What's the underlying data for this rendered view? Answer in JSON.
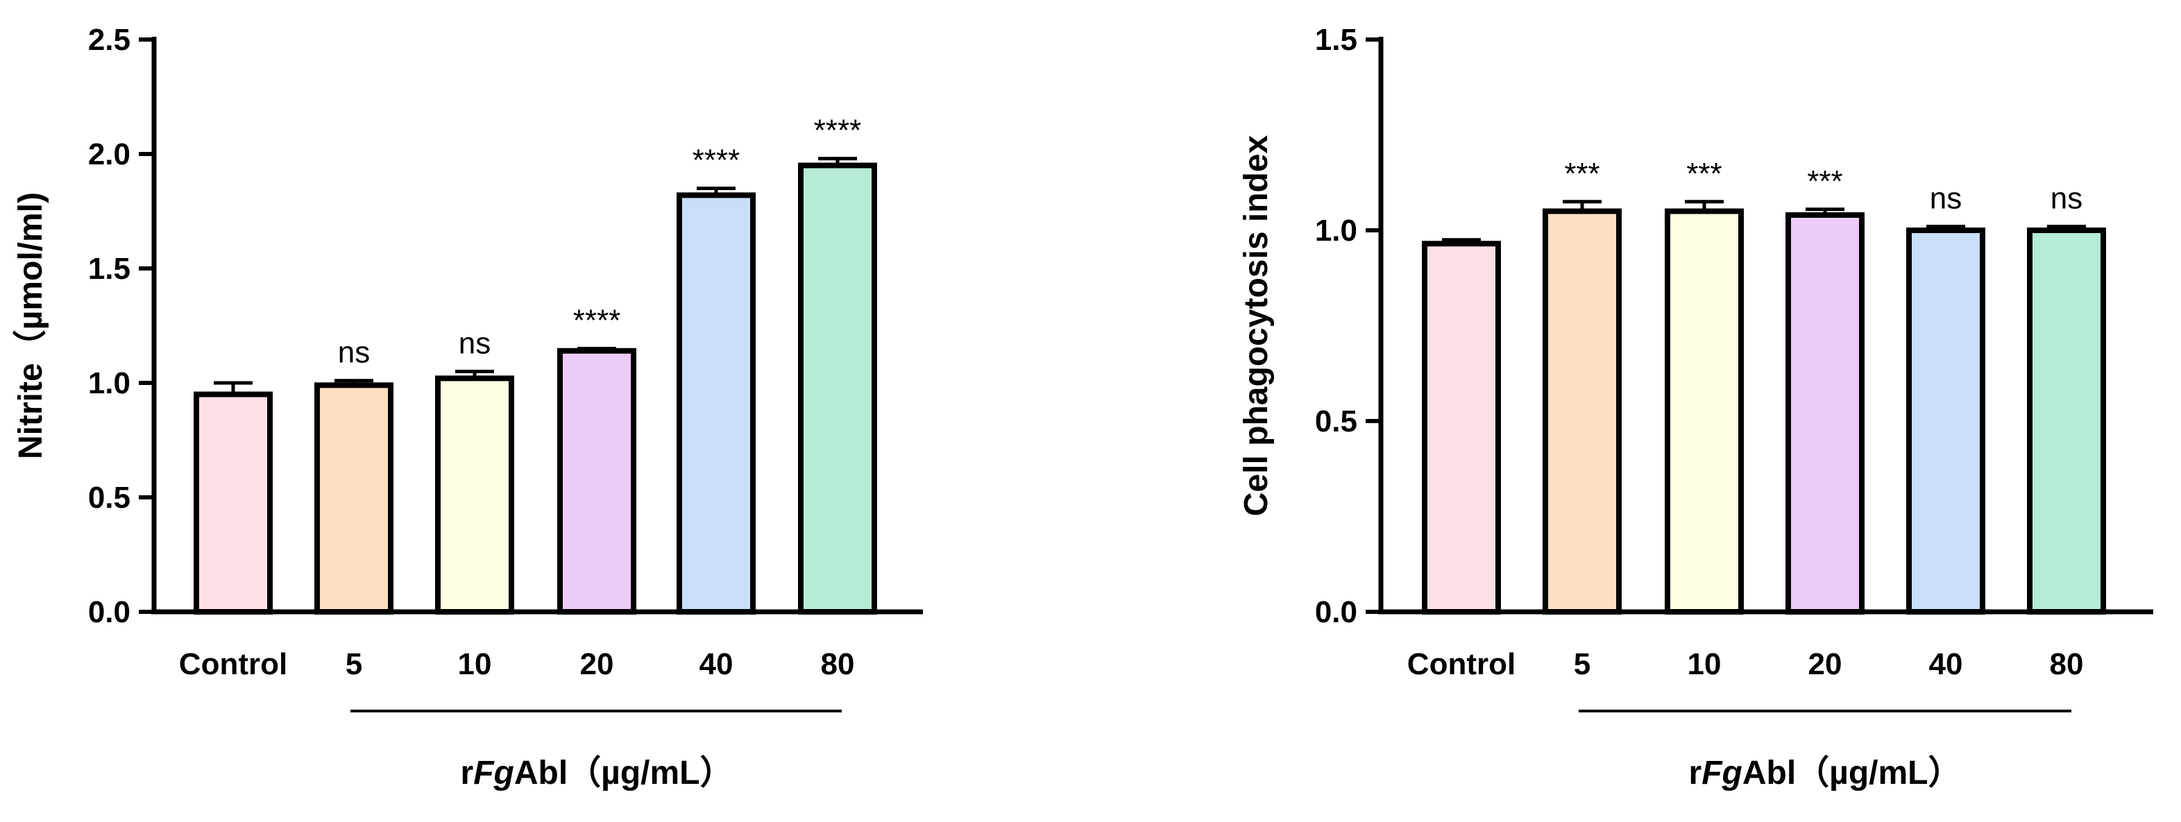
{
  "chart_data": [
    {
      "type": "bar",
      "categories": [
        "Control",
        "5",
        "10",
        "20",
        "40",
        "80"
      ],
      "values": [
        0.95,
        0.99,
        1.02,
        1.14,
        1.82,
        1.95
      ],
      "errors": [
        0.05,
        0.02,
        0.03,
        0.01,
        0.03,
        0.03
      ],
      "significance": [
        "",
        "ns",
        "ns",
        "****",
        "****",
        "****"
      ],
      "bar_colors": [
        "#FCE0E3",
        "#FDDFC2",
        "#FFFEE2",
        "#ECCCF7",
        "#C8DFF7",
        "#B6EBD6"
      ],
      "ylabel": "Nitrite（µmol/ml)",
      "yticks": [
        "0.0",
        "0.5",
        "1.0",
        "1.5",
        "2.0",
        "2.5"
      ],
      "ylim": [
        0,
        2.5
      ],
      "xlabel": {
        "prefix": "r",
        "italic": "Fg",
        "suffix": "Abl（µg/mL）"
      }
    },
    {
      "type": "bar",
      "categories": [
        "Control",
        "5",
        "10",
        "20",
        "40",
        "80"
      ],
      "values": [
        0.965,
        1.05,
        1.05,
        1.04,
        1.0,
        1.0
      ],
      "errors": [
        0.01,
        0.025,
        0.025,
        0.015,
        0.01,
        0.01
      ],
      "significance": [
        "",
        "***",
        "***",
        "***",
        "ns",
        "ns"
      ],
      "bar_colors": [
        "#FCE0E3",
        "#FDDFC2",
        "#FFFEE2",
        "#ECCCF7",
        "#C8DFF7",
        "#B6EBD6"
      ],
      "ylabel": "Cell phagocytosis index",
      "yticks": [
        "0.0",
        "0.5",
        "1.0",
        "1.5"
      ],
      "ylim": [
        0,
        1.5
      ],
      "xlabel": {
        "prefix": "r",
        "italic": "Fg",
        "suffix": "Abl（µg/mL）"
      }
    }
  ]
}
